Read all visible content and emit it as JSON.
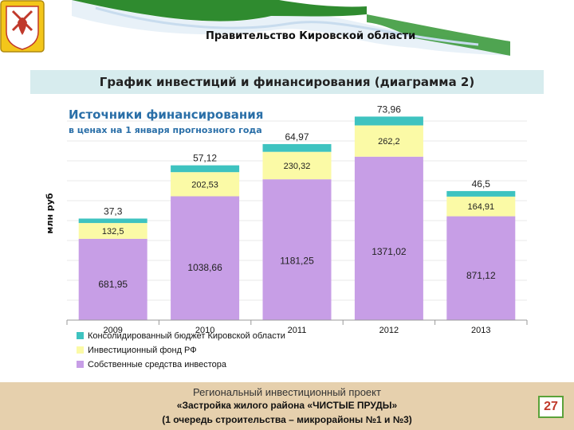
{
  "header": {
    "organization": "Правительство Кировской области"
  },
  "section_title": "График инвестиций и финансирования (диаграмма 2)",
  "chart_data": {
    "type": "bar",
    "stacked": true,
    "title": "Источники финансирования",
    "subtitle": "в ценах на 1 января прогнозного года",
    "ylabel": "млн руб",
    "categories": [
      "2009",
      "2010",
      "2011",
      "2012",
      "2013"
    ],
    "series": [
      {
        "name": "Собственные средства инвестора",
        "color": "#c79ee6",
        "values": [
          681.95,
          1038.66,
          1181.25,
          1371.02,
          871.12
        ]
      },
      {
        "name": "Инвестиционный фонд РФ",
        "color": "#fbfaa6",
        "values": [
          132.5,
          202.53,
          230.32,
          262.2,
          164.91
        ]
      },
      {
        "name": "Консолидированный бюджет Кировской области",
        "color": "#3ec3c0",
        "values": [
          37.3,
          57.12,
          64.97,
          73.96,
          46.5
        ]
      }
    ],
    "labels": {
      "Собственные средства инвестора": [
        "681,95",
        "1038,66",
        "1181,25",
        "1371,02",
        "871,12"
      ],
      "Инвестиционный фонд РФ": [
        "132,5",
        "202,53",
        "230,32",
        "262,2",
        "164,91"
      ],
      "Консолидированный бюджет Кировской области": [
        "37,3",
        "57,12",
        "64,97",
        "73,96",
        "46,5"
      ]
    },
    "legend": [
      "Консолидированный бюджет Кировской области",
      "Инвестиционный фонд РФ",
      "Собственные средства инвестора"
    ],
    "legend_position": "bottom-left",
    "ylim": [
      0,
      1750
    ],
    "grid": true
  },
  "footer": {
    "line1": "Региональный инвестиционный проект",
    "line2": "«Застройка жилого района «ЧИСТЫЕ ПРУДЫ»",
    "line3": "(1 очередь строительства – микрорайоны №1 и №3)"
  },
  "page_number": "27"
}
